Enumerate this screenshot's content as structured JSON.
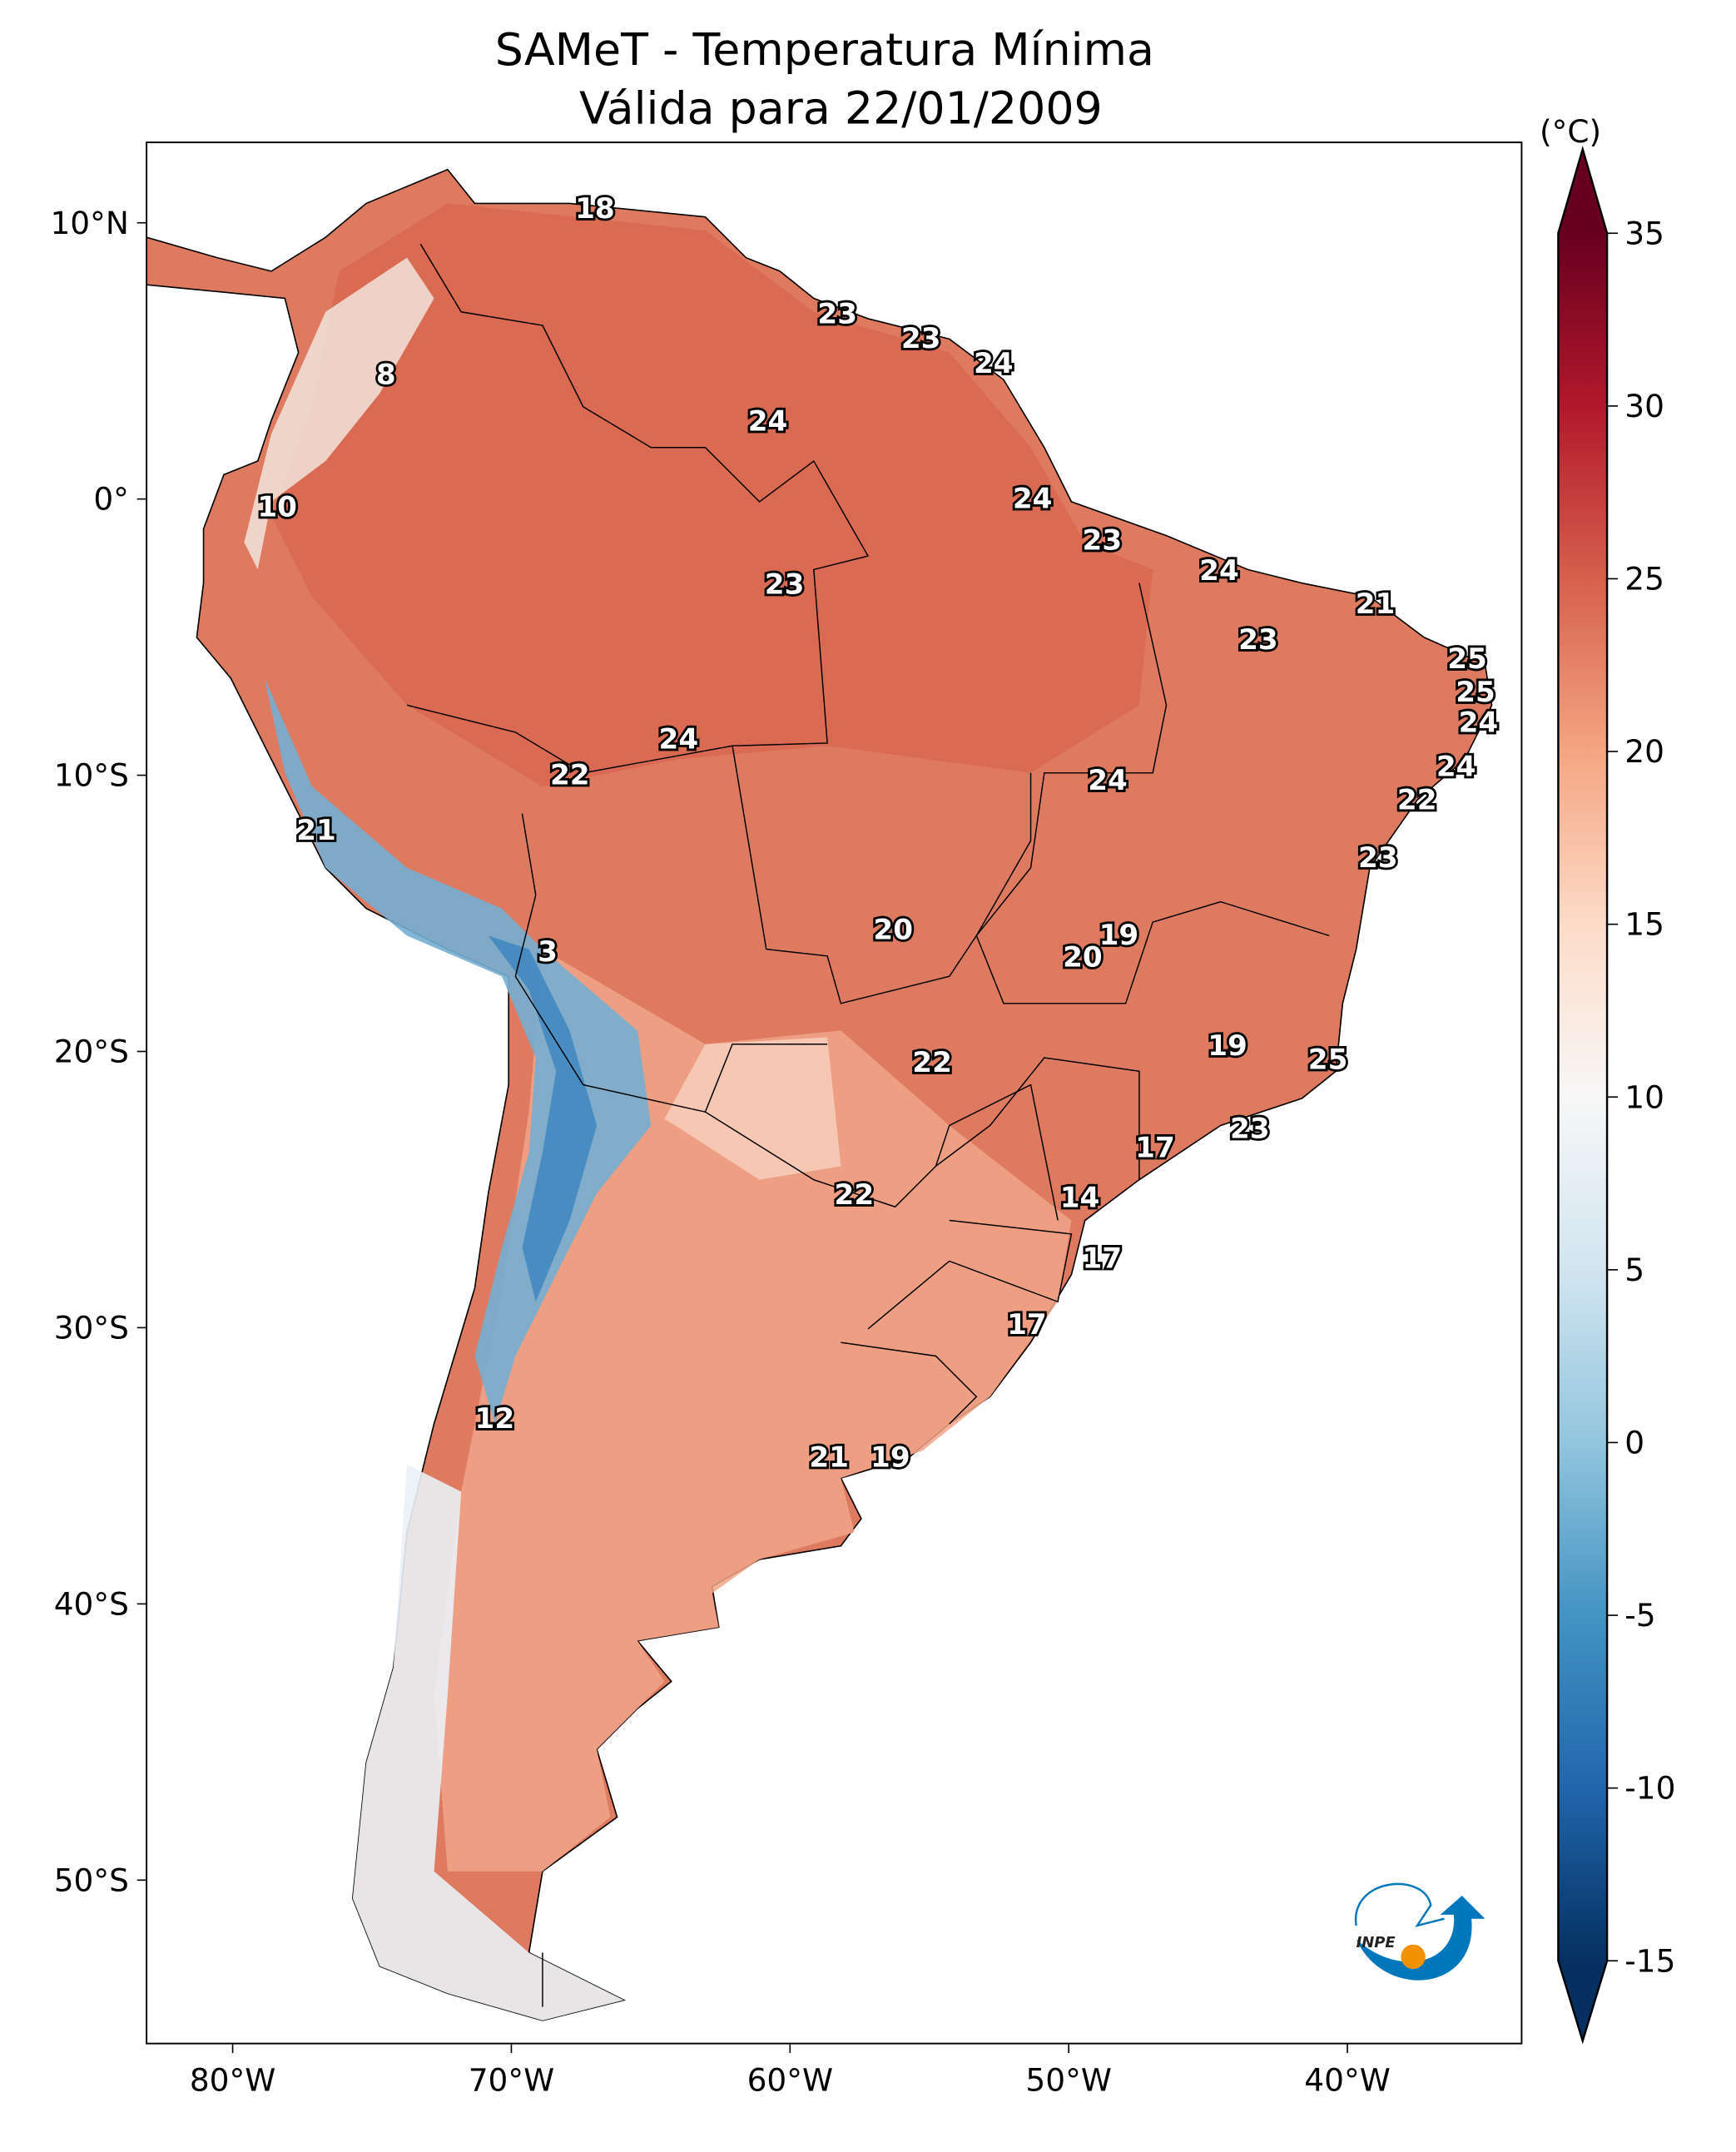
{
  "title": "SAMeT - Temperatura Mínima",
  "subtitle": "Válida para 22/01/2009",
  "colorbar": {
    "unit": "(°C)",
    "ticks": [
      "35",
      "30",
      "25",
      "20",
      "15",
      "10",
      "5",
      "0",
      "-5",
      "-10",
      "-15"
    ],
    "range": [
      -15,
      35
    ],
    "extend": "both",
    "colormap_stops": [
      {
        "value": -15,
        "color": "#053061"
      },
      {
        "value": -10,
        "color": "#2166ac"
      },
      {
        "value": -5,
        "color": "#4393c3"
      },
      {
        "value": 0,
        "color": "#92c5de"
      },
      {
        "value": 5,
        "color": "#d1e5f0"
      },
      {
        "value": 10,
        "color": "#f7f7f7"
      },
      {
        "value": 15,
        "color": "#fddbc7"
      },
      {
        "value": 20,
        "color": "#f4a582"
      },
      {
        "value": 25,
        "color": "#d6604d"
      },
      {
        "value": 30,
        "color": "#b2182b"
      },
      {
        "value": 35,
        "color": "#67001f"
      }
    ]
  },
  "axes": {
    "lon_ticks": [
      {
        "value": -80,
        "label": "80°W"
      },
      {
        "value": -70,
        "label": "70°W"
      },
      {
        "value": -60,
        "label": "60°W"
      },
      {
        "value": -50,
        "label": "50°W"
      },
      {
        "value": -40,
        "label": "40°W"
      }
    ],
    "lat_ticks": [
      {
        "value": 10,
        "label": "10°N"
      },
      {
        "value": 0,
        "label": "0°"
      },
      {
        "value": -10,
        "label": "10°S"
      },
      {
        "value": -20,
        "label": "20°S"
      },
      {
        "value": -30,
        "label": "30°S"
      },
      {
        "value": -40,
        "label": "40°S"
      },
      {
        "value": -50,
        "label": "50°S"
      }
    ]
  },
  "logo": {
    "text": "INPE",
    "colors": {
      "blue": "#0077bb",
      "orange": "#f39200"
    }
  },
  "chart_data": {
    "type": "heatmap",
    "description_variable": "Temperatura Mínima",
    "station_labels": [
      {
        "lon": -67.0,
        "lat": 10.5,
        "value": "18"
      },
      {
        "lon": -58.3,
        "lat": 6.7,
        "value": "23"
      },
      {
        "lon": -55.3,
        "lat": 5.8,
        "value": "23"
      },
      {
        "lon": -52.7,
        "lat": 4.9,
        "value": "24"
      },
      {
        "lon": -60.8,
        "lat": 2.8,
        "value": "24"
      },
      {
        "lon": -74.5,
        "lat": 4.5,
        "value": "8"
      },
      {
        "lon": -78.4,
        "lat": -0.3,
        "value": "10"
      },
      {
        "lon": -51.3,
        "lat": 0.0,
        "value": "24"
      },
      {
        "lon": -48.8,
        "lat": -1.5,
        "value": "23"
      },
      {
        "lon": -44.6,
        "lat": -2.6,
        "value": "24"
      },
      {
        "lon": -39.0,
        "lat": -3.8,
        "value": "21"
      },
      {
        "lon": -60.2,
        "lat": -3.1,
        "value": "23"
      },
      {
        "lon": -43.2,
        "lat": -5.1,
        "value": "23"
      },
      {
        "lon": -35.7,
        "lat": -5.8,
        "value": "25"
      },
      {
        "lon": -35.4,
        "lat": -7.0,
        "value": "25"
      },
      {
        "lon": -35.3,
        "lat": -8.1,
        "value": "24"
      },
      {
        "lon": -36.1,
        "lat": -9.7,
        "value": "24"
      },
      {
        "lon": -37.5,
        "lat": -10.9,
        "value": "22"
      },
      {
        "lon": -38.9,
        "lat": -13.0,
        "value": "23"
      },
      {
        "lon": -64.0,
        "lat": -8.7,
        "value": "24"
      },
      {
        "lon": -67.9,
        "lat": -10.0,
        "value": "22"
      },
      {
        "lon": -48.6,
        "lat": -10.2,
        "value": "24"
      },
      {
        "lon": -77.0,
        "lat": -12.0,
        "value": "21"
      },
      {
        "lon": -56.3,
        "lat": -15.6,
        "value": "20"
      },
      {
        "lon": -48.2,
        "lat": -15.8,
        "value": "19"
      },
      {
        "lon": -49.5,
        "lat": -16.6,
        "value": "20"
      },
      {
        "lon": -68.7,
        "lat": -16.4,
        "value": "3"
      },
      {
        "lon": -44.3,
        "lat": -19.8,
        "value": "19"
      },
      {
        "lon": -40.7,
        "lat": -20.3,
        "value": "25"
      },
      {
        "lon": -54.9,
        "lat": -20.4,
        "value": "22"
      },
      {
        "lon": -46.9,
        "lat": -23.5,
        "value": "17"
      },
      {
        "lon": -43.5,
        "lat": -22.8,
        "value": "23"
      },
      {
        "lon": -57.7,
        "lat": -25.2,
        "value": "22"
      },
      {
        "lon": -49.6,
        "lat": -25.3,
        "value": "14"
      },
      {
        "lon": -48.8,
        "lat": -27.5,
        "value": "17"
      },
      {
        "lon": -51.5,
        "lat": -29.9,
        "value": "17"
      },
      {
        "lon": -70.6,
        "lat": -33.3,
        "value": "12"
      },
      {
        "lon": -58.6,
        "lat": -34.7,
        "value": "21"
      },
      {
        "lon": -56.4,
        "lat": -34.7,
        "value": "19"
      }
    ],
    "lon_range": [
      -83,
      -33.5
    ],
    "lat_range": [
      -56,
      12.5
    ]
  }
}
